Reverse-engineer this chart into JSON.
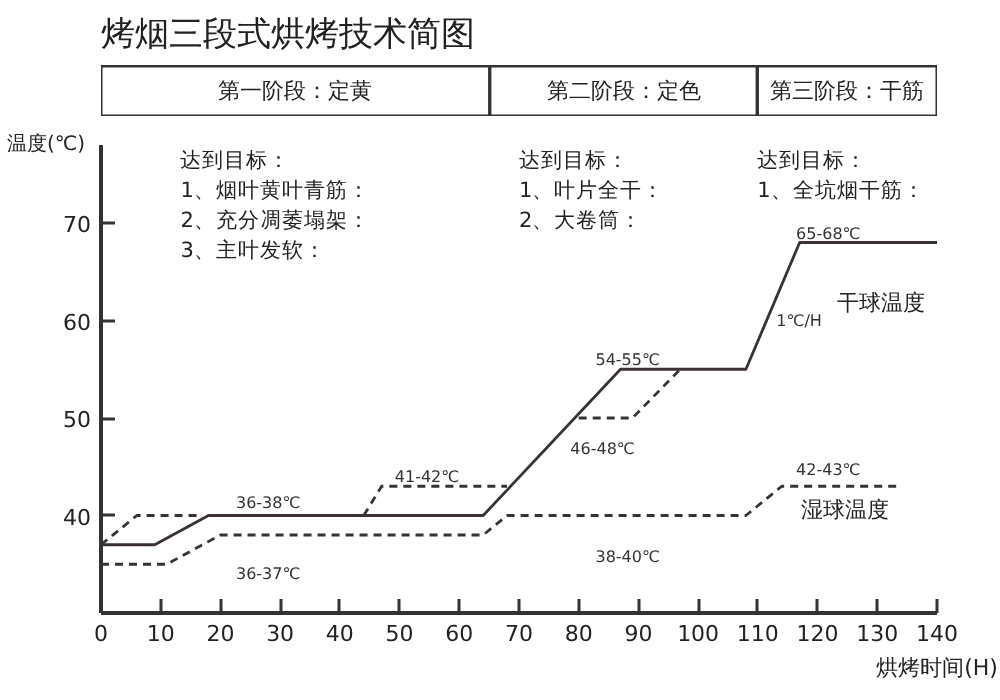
{
  "chart_data": {
    "type": "line",
    "title": "烤烟三段式烘烤技术简图",
    "xlabel": "烘烤时间(H)",
    "ylabel": "温度(℃)",
    "xlim": [
      0,
      140
    ],
    "ylim": [
      30,
      78
    ],
    "xticks": [
      0,
      10,
      20,
      30,
      40,
      50,
      60,
      70,
      80,
      90,
      100,
      110,
      120,
      130,
      140
    ],
    "yticks": [
      40,
      50,
      60,
      70
    ],
    "grid": false,
    "marker": "none",
    "series": [
      {
        "name": "干球温度",
        "color": "#3a3232",
        "line_style": "solid",
        "x": [
          0,
          9,
          18,
          64,
          87,
          108,
          117,
          140
        ],
        "values": [
          37,
          37,
          40,
          40,
          55,
          55,
          68,
          68
        ]
      },
      {
        "name": "湿球温度",
        "color": "#3a3232",
        "line_style": "dashed",
        "x": [
          0,
          11,
          20,
          64,
          68,
          108,
          114,
          134
        ],
        "values": [
          35,
          35,
          38,
          38,
          40,
          40,
          43,
          43
        ]
      },
      {
        "color": "#3a3232",
        "line_style": "dashed",
        "x": [
          0,
          6,
          17
        ],
        "values": [
          37,
          40,
          40
        ]
      },
      {
        "color": "#3a3232",
        "line_style": "dashed",
        "x": [
          44,
          47,
          68
        ],
        "values": [
          40,
          43,
          43
        ]
      },
      {
        "color": "#3a3232",
        "line_style": "dashed",
        "x": [
          80,
          89,
          97
        ],
        "values": [
          50,
          50,
          55
        ]
      }
    ],
    "annotations": [
      "第一阶段：定黄",
      "第二阶段：定色",
      "第三阶段：干筋",
      "达到目标：\n1、烟叶黄叶青筋：\n2、充分凋萎塌架：\n3、主叶发软：",
      "达到目标：\n1、叶片全干：\n2、大卷筒：",
      "达到目标：\n1、全坑烟干筋：",
      "36-38℃",
      "36-37℃",
      "41-42℃",
      "46-48℃",
      "54-55℃",
      "38-40℃",
      "65-68℃",
      "1℃/H",
      "42-43℃"
    ]
  }
}
